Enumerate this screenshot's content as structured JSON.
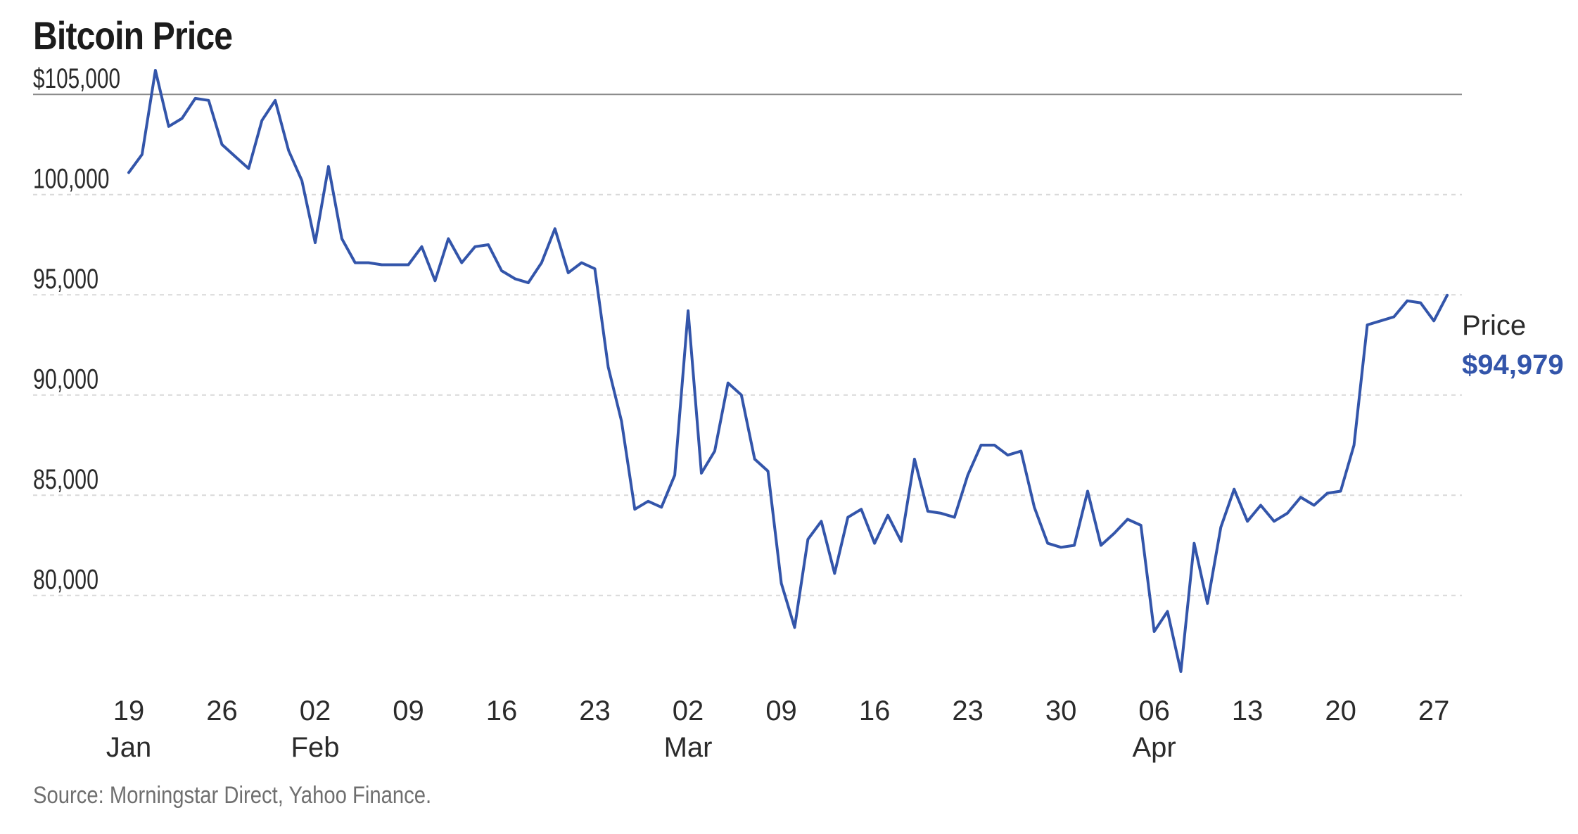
{
  "chart_data": {
    "type": "line",
    "title": "Bitcoin Price",
    "xlabel": "",
    "ylabel": "",
    "ylim": [
      75500,
      106200
    ],
    "yticks": [
      {
        "value": 105000,
        "label": "$105,000"
      },
      {
        "value": 100000,
        "label": "100,000"
      },
      {
        "value": 95000,
        "label": "95,000"
      },
      {
        "value": 90000,
        "label": "90,000"
      },
      {
        "value": 85000,
        "label": "85,000"
      },
      {
        "value": 80000,
        "label": "80,000"
      }
    ],
    "xticks": [
      {
        "date": "2025-01-19",
        "day": "19",
        "month": "Jan"
      },
      {
        "date": "2025-01-26",
        "day": "26",
        "month": ""
      },
      {
        "date": "2025-02-02",
        "day": "02",
        "month": "Feb"
      },
      {
        "date": "2025-02-09",
        "day": "09",
        "month": ""
      },
      {
        "date": "2025-02-16",
        "day": "16",
        "month": ""
      },
      {
        "date": "2025-02-23",
        "day": "23",
        "month": ""
      },
      {
        "date": "2025-03-02",
        "day": "02",
        "month": "Mar"
      },
      {
        "date": "2025-03-09",
        "day": "09",
        "month": ""
      },
      {
        "date": "2025-03-16",
        "day": "16",
        "month": ""
      },
      {
        "date": "2025-03-23",
        "day": "23",
        "month": ""
      },
      {
        "date": "2025-03-30",
        "day": "30",
        "month": ""
      },
      {
        "date": "2025-04-06",
        "day": "06",
        "month": "Apr"
      },
      {
        "date": "2025-04-13",
        "day": "13",
        "month": ""
      },
      {
        "date": "2025-04-20",
        "day": "20",
        "month": ""
      },
      {
        "date": "2025-04-27",
        "day": "27",
        "month": ""
      }
    ],
    "series": [
      {
        "name": "Price",
        "color": "#3355aa",
        "last_value_label": "$94,979",
        "x": [
          "2025-01-19",
          "2025-01-20",
          "2025-01-21",
          "2025-01-22",
          "2025-01-23",
          "2025-01-24",
          "2025-01-25",
          "2025-01-26",
          "2025-01-27",
          "2025-01-28",
          "2025-01-29",
          "2025-01-30",
          "2025-01-31",
          "2025-02-01",
          "2025-02-02",
          "2025-02-03",
          "2025-02-04",
          "2025-02-05",
          "2025-02-06",
          "2025-02-07",
          "2025-02-08",
          "2025-02-09",
          "2025-02-10",
          "2025-02-11",
          "2025-02-12",
          "2025-02-13",
          "2025-02-14",
          "2025-02-15",
          "2025-02-16",
          "2025-02-17",
          "2025-02-18",
          "2025-02-19",
          "2025-02-20",
          "2025-02-21",
          "2025-02-22",
          "2025-02-23",
          "2025-02-24",
          "2025-02-25",
          "2025-02-26",
          "2025-02-27",
          "2025-02-28",
          "2025-03-01",
          "2025-03-02",
          "2025-03-03",
          "2025-03-04",
          "2025-03-05",
          "2025-03-06",
          "2025-03-07",
          "2025-03-08",
          "2025-03-09",
          "2025-03-10",
          "2025-03-11",
          "2025-03-12",
          "2025-03-13",
          "2025-03-14",
          "2025-03-15",
          "2025-03-16",
          "2025-03-17",
          "2025-03-18",
          "2025-03-19",
          "2025-03-20",
          "2025-03-21",
          "2025-03-22",
          "2025-03-23",
          "2025-03-24",
          "2025-03-25",
          "2025-03-26",
          "2025-03-27",
          "2025-03-28",
          "2025-03-29",
          "2025-03-30",
          "2025-03-31",
          "2025-04-01",
          "2025-04-02",
          "2025-04-03",
          "2025-04-04",
          "2025-04-05",
          "2025-04-06",
          "2025-04-07",
          "2025-04-08",
          "2025-04-09",
          "2025-04-10",
          "2025-04-11",
          "2025-04-12",
          "2025-04-13",
          "2025-04-14",
          "2025-04-15",
          "2025-04-16",
          "2025-04-17",
          "2025-04-18",
          "2025-04-19",
          "2025-04-20",
          "2025-04-21",
          "2025-04-22",
          "2025-04-23",
          "2025-04-24",
          "2025-04-25",
          "2025-04-26",
          "2025-04-27",
          "2025-04-28"
        ],
        "values": [
          101100,
          102000,
          106200,
          103400,
          103800,
          104800,
          104700,
          102500,
          101900,
          101300,
          103700,
          104700,
          102200,
          100700,
          97600,
          101400,
          97800,
          96600,
          96600,
          96500,
          96500,
          96500,
          97400,
          95700,
          97800,
          96600,
          97400,
          97500,
          96200,
          95800,
          95600,
          96600,
          98300,
          96100,
          96600,
          96300,
          91400,
          88700,
          84300,
          84700,
          84400,
          86000,
          94200,
          86100,
          87200,
          90600,
          90000,
          86800,
          86200,
          80600,
          78400,
          82800,
          83700,
          81100,
          83900,
          84300,
          82600,
          84000,
          82700,
          86800,
          84200,
          84100,
          83900,
          86000,
          87500,
          87500,
          87000,
          87200,
          84400,
          82600,
          82400,
          82500,
          85200,
          82500,
          83100,
          83800,
          83500,
          78200,
          79200,
          76200,
          82600,
          79600,
          83400,
          85300,
          83700,
          84500,
          83700,
          84100,
          84900,
          84500,
          85100,
          85200,
          87500,
          93500,
          93700,
          93900,
          94700,
          94600,
          93700,
          94979
        ]
      }
    ],
    "annotation_label": "Price",
    "source": "Source: Morningstar Direct, Yahoo Finance.",
    "grid": true,
    "legend": "inline at end of line"
  }
}
